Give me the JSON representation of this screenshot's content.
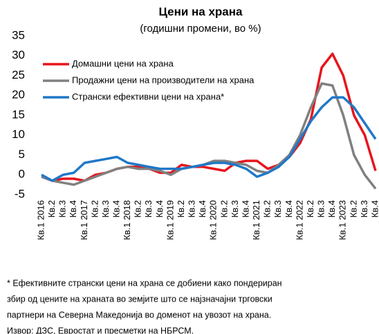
{
  "chart_data": {
    "type": "line",
    "title": "Цени на храна",
    "subtitle": "(годишни промени, во %)",
    "categories": [
      "Кв.1 2016",
      "Кв.2",
      "Кв.3",
      "Кв.4",
      "Кв.1 2017",
      "Кв.2",
      "Кв.3",
      "Кв.4",
      "Кв.1 2018",
      "Кв.2",
      "Кв.3",
      "Кв.4",
      "Кв.1 2019",
      "Кв.2",
      "Кв.3",
      "Кв.4",
      "Кв.1 2020",
      "Кв.2",
      "Кв.3",
      "Кв.4",
      "Кв.1 2021",
      "Кв.2",
      "Кв.3",
      "Кв.4",
      "Кв.1 2022",
      "Кв.2",
      "Кв.3",
      "Кв.4",
      "Кв.1 2023",
      "Кв.2",
      "Кв.3",
      "Кв.4"
    ],
    "series": [
      {
        "name": "Домашни цени на храна",
        "color": "#e8141c",
        "values": [
          -0.5,
          -1.5,
          -1,
          -1,
          -1.5,
          0,
          0.5,
          1.5,
          2,
          2,
          1.5,
          0.5,
          0.5,
          2.5,
          2,
          2,
          1.5,
          1,
          3,
          3.5,
          3.5,
          1.5,
          2.5,
          4.5,
          8,
          14,
          27,
          30.5,
          25,
          15,
          10,
          1
        ]
      },
      {
        "name": "Продажни цени на производители на храна",
        "color": "#808080",
        "values": [
          -0.5,
          -1.5,
          -2,
          -2.5,
          -1.5,
          -0.5,
          0.5,
          1.5,
          2,
          1.5,
          1.5,
          1,
          0,
          1.5,
          2,
          2.5,
          3.5,
          3.5,
          3,
          2.5,
          1,
          0.5,
          2.5,
          5,
          10,
          17,
          23,
          22.5,
          15,
          5,
          0,
          -3.5
        ]
      },
      {
        "name": "Странски ефективни цени на храна*",
        "color": "#1f78c8",
        "values": [
          0,
          -1.5,
          0,
          0.5,
          3,
          3.5,
          4,
          4.5,
          3,
          2.5,
          2,
          1.5,
          1.5,
          1.5,
          2,
          2.5,
          3,
          3,
          2.5,
          1.5,
          -0.5,
          0.5,
          2,
          4.5,
          9,
          13.5,
          17,
          19.5,
          19.5,
          17,
          13,
          9
        ]
      }
    ],
    "ylim": [
      -5,
      35
    ],
    "yticks": [
      -5,
      0,
      5,
      10,
      15,
      20,
      25,
      30,
      35
    ],
    "legend": "top-left",
    "notes": [
      "* Ефективните странски цени на храна се добиени како пондериран",
      "збир од цените на храната во земјите што се најзначајни трговски",
      "партнери на Северна Македонија во доменот на увозот на храна.",
      "Извор: ДЗС, Евростат и пресметки на НБРСМ."
    ]
  }
}
